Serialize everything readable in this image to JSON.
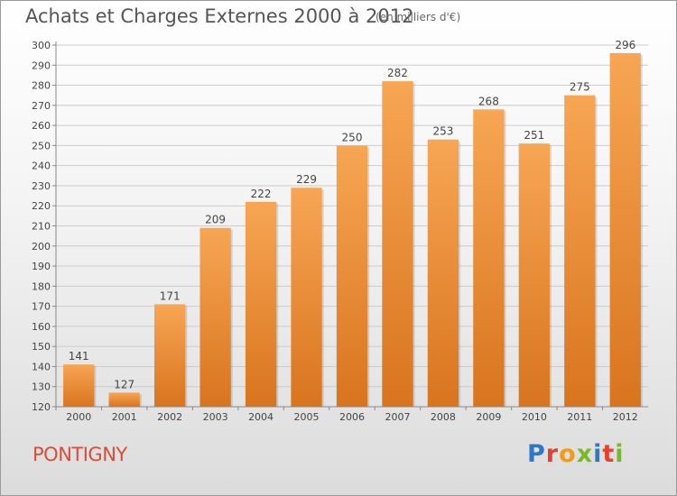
{
  "header": {
    "title": "Achats et Charges Externes 2000 à 2012",
    "subtitle": "(en milliers d'€)"
  },
  "footer": {
    "commune": "PONTIGNY",
    "logo_text": "Proxiti",
    "logo_letters": [
      {
        "ch": "P",
        "color": "#2f78c4"
      },
      {
        "ch": "r",
        "color": "#e5412d"
      },
      {
        "ch": "o",
        "color": "#f39c12"
      },
      {
        "ch": "x",
        "color": "#7ab829"
      },
      {
        "ch": "i",
        "color": "#2f78c4"
      },
      {
        "ch": "t",
        "color": "#e5412d"
      },
      {
        "ch": "i",
        "color": "#7ab829"
      }
    ]
  },
  "colors": {
    "bar_light": "#f7a654",
    "bar_dark": "#d9741e",
    "grid": "#cccccc",
    "axis": "#888888",
    "label": "#444444"
  },
  "chart_data": {
    "type": "bar",
    "title": "Achats et Charges Externes 2000 à 2012",
    "subtitle": "(en milliers d'€)",
    "categories": [
      "2000",
      "2001",
      "2002",
      "2003",
      "2004",
      "2005",
      "2006",
      "2007",
      "2008",
      "2009",
      "2010",
      "2011",
      "2012"
    ],
    "values": [
      141,
      127,
      171,
      209,
      222,
      229,
      250,
      282,
      253,
      268,
      251,
      275,
      296
    ],
    "ylim": [
      120,
      300
    ],
    "ytick_step": 10,
    "grid": true,
    "data_labels": true
  }
}
